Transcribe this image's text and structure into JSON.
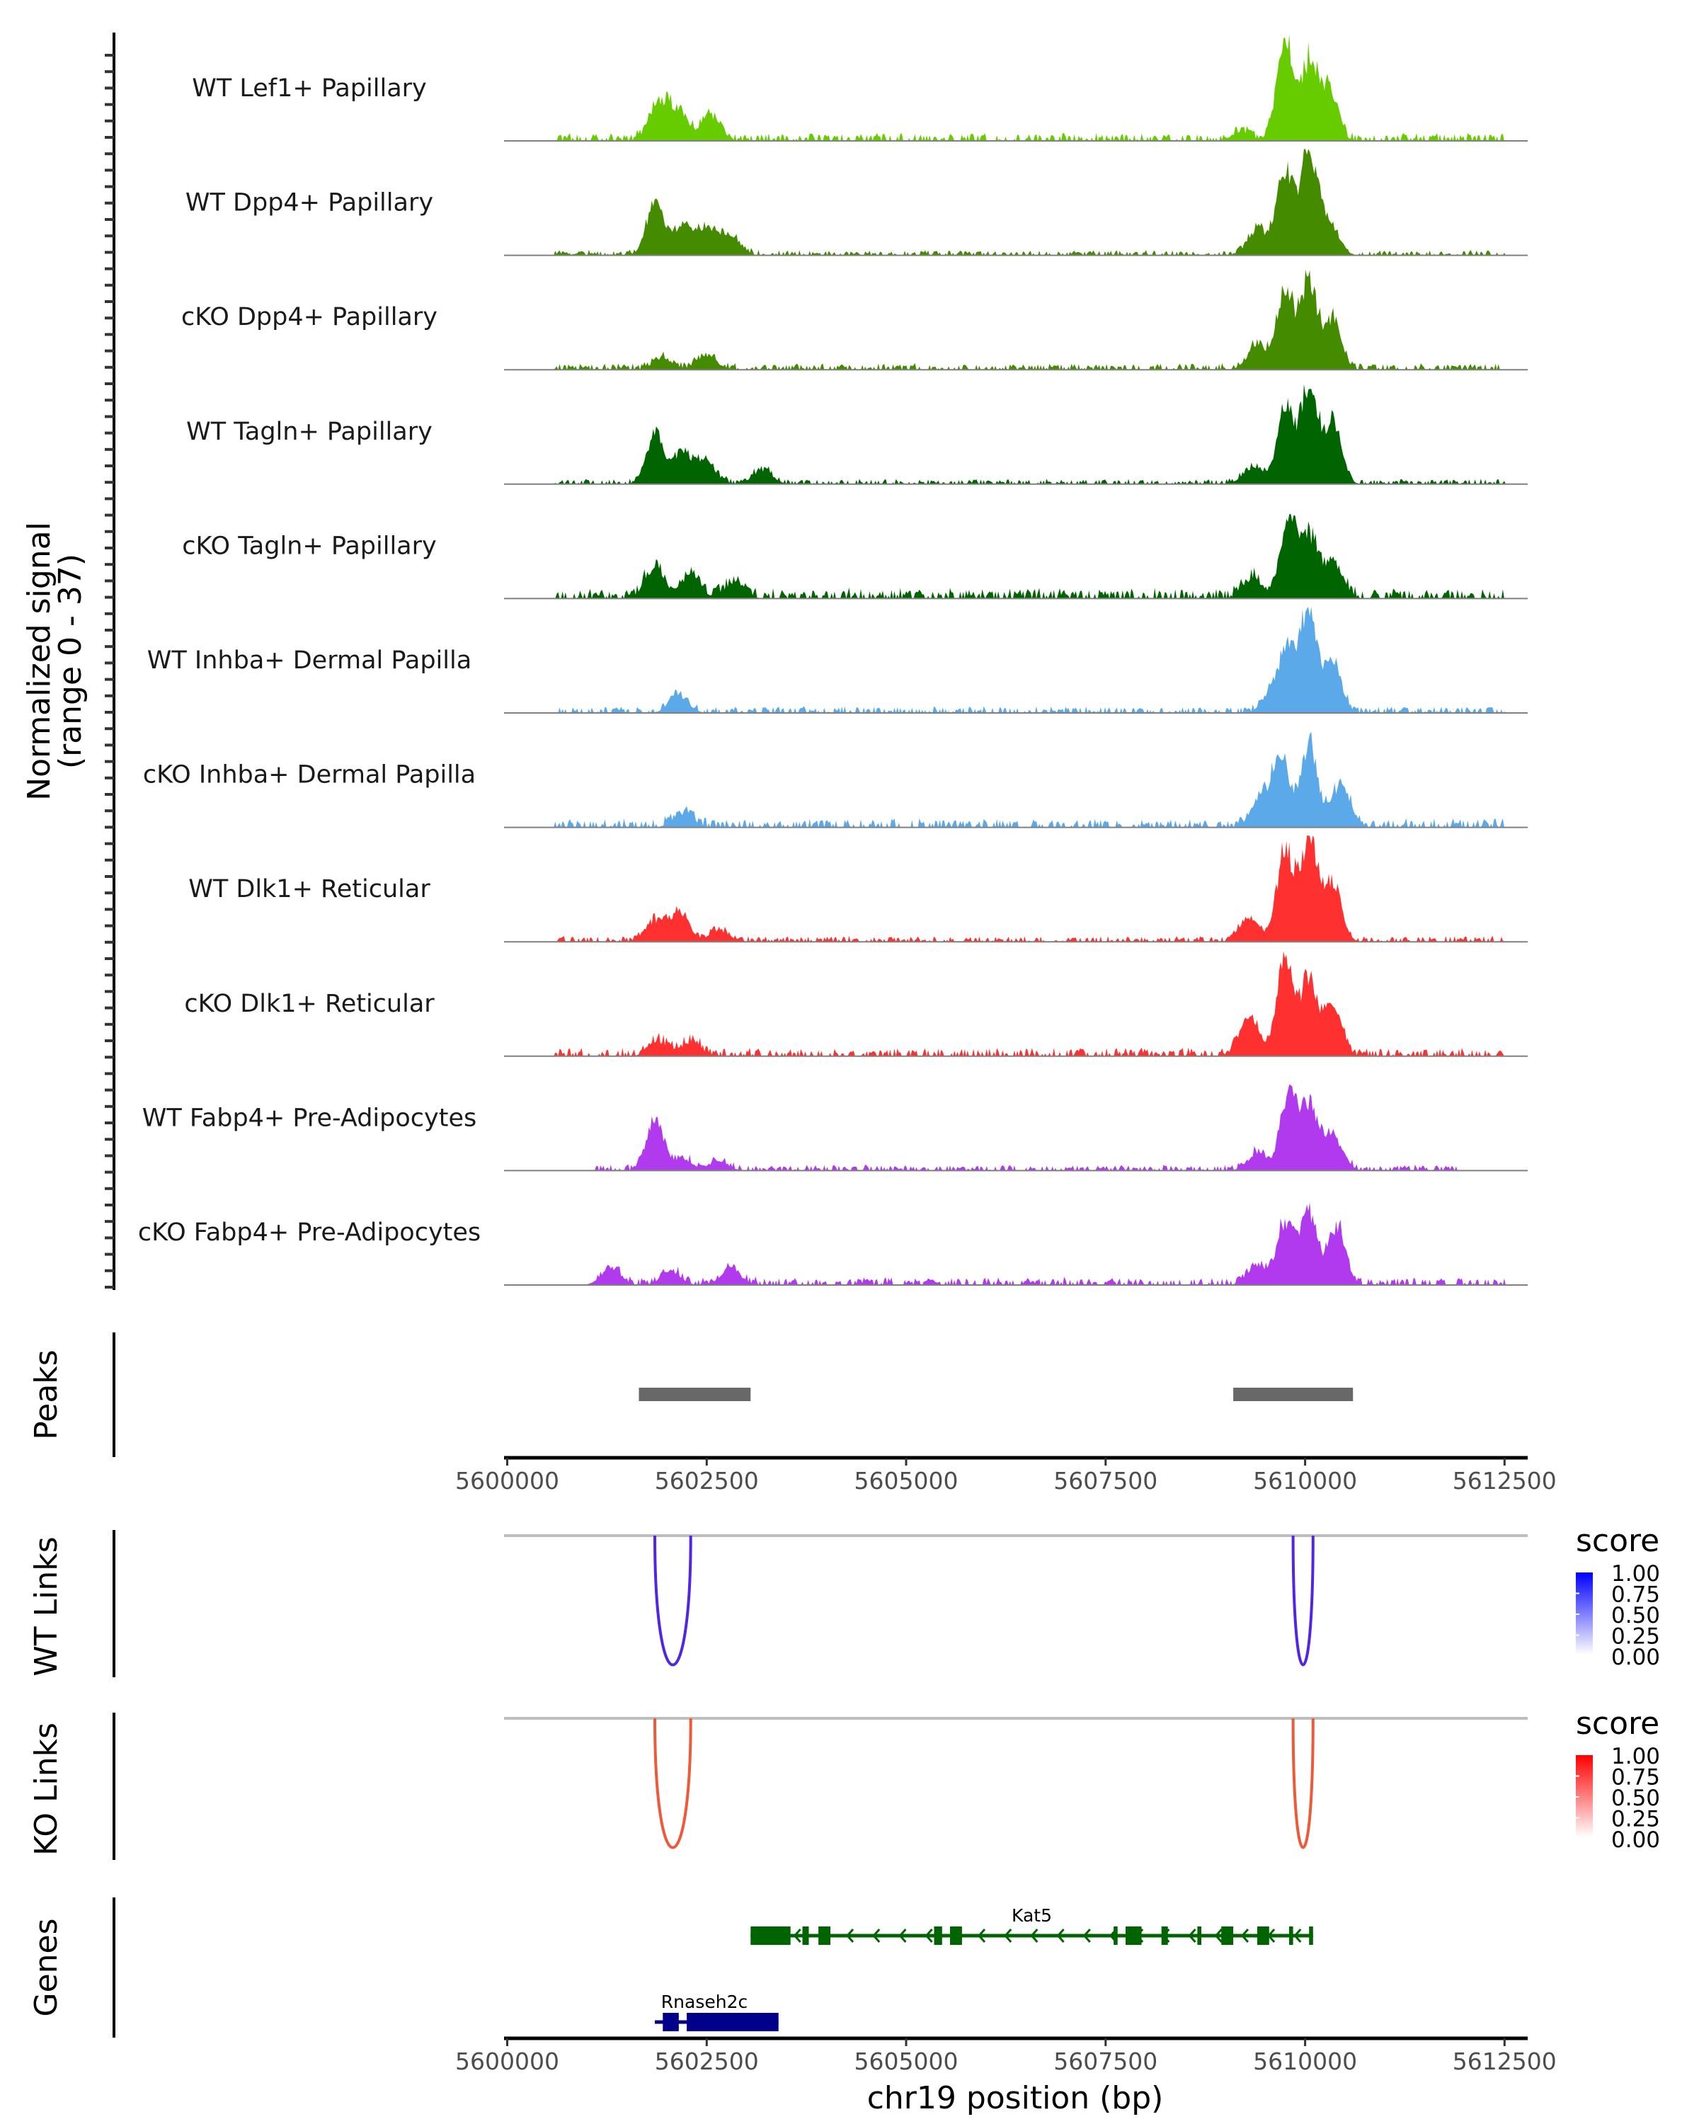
{
  "chart_data": {
    "type": "area",
    "title": "",
    "region": {
      "chrom": "chr19",
      "start": 5599960,
      "end": 5612790
    },
    "coverage": {
      "ylabel": "Normalized signal",
      "ylabel_sub": "(range 0 - 37)",
      "ylim": [
        0,
        37
      ],
      "tracks": [
        {
          "name": "WT Lef1+ Papillary",
          "color": "#66cc00",
          "peaks": [
            [
              5601900,
              12
            ],
            [
              5602150,
              10
            ],
            [
              5602550,
              8
            ],
            [
              5609750,
              33
            ],
            [
              5610050,
              26
            ],
            [
              5610300,
              18
            ],
            [
              5609200,
              3
            ]
          ],
          "background": 1.2,
          "noise_start": 5600600,
          "noise_end": 5612500
        },
        {
          "name": "WT Dpp4+ Papillary",
          "color": "#458b00",
          "peaks": [
            [
              5601850,
              18
            ],
            [
              5602200,
              10
            ],
            [
              5602500,
              9
            ],
            [
              5602800,
              7
            ],
            [
              5609400,
              9
            ],
            [
              5609750,
              29
            ],
            [
              5610050,
              36
            ],
            [
              5610300,
              10
            ]
          ],
          "background": 0.8,
          "noise_start": 5600600,
          "noise_end": 5612500
        },
        {
          "name": "cKO Dpp4+ Papillary",
          "color": "#458b00",
          "peaks": [
            [
              5601950,
              4
            ],
            [
              5602500,
              5
            ],
            [
              5609400,
              8
            ],
            [
              5609750,
              26
            ],
            [
              5610050,
              30
            ],
            [
              5610350,
              17
            ]
          ],
          "background": 1.0,
          "noise_start": 5600600,
          "noise_end": 5612500
        },
        {
          "name": "WT Tagln+ Papillary",
          "color": "#006400",
          "peaks": [
            [
              5601850,
              17
            ],
            [
              5602200,
              11
            ],
            [
              5602500,
              7
            ],
            [
              5603200,
              5
            ],
            [
              5609350,
              6
            ],
            [
              5609750,
              26
            ],
            [
              5610050,
              33
            ],
            [
              5610350,
              22
            ]
          ],
          "background": 0.8,
          "noise_start": 5600600,
          "noise_end": 5612500
        },
        {
          "name": "cKO Tagln+ Papillary",
          "color": "#006400",
          "peaks": [
            [
              5601850,
              11
            ],
            [
              5602300,
              8
            ],
            [
              5602850,
              6
            ],
            [
              5609350,
              7
            ],
            [
              5609800,
              26
            ],
            [
              5610050,
              21
            ],
            [
              5610350,
              13
            ]
          ],
          "background": 1.6,
          "noise_start": 5600600,
          "noise_end": 5612500
        },
        {
          "name": "WT Inhba+ Dermal Papilla",
          "color": "#5ca9e9",
          "peaks": [
            [
              5602150,
              6
            ],
            [
              5609600,
              8
            ],
            [
              5609800,
              20
            ],
            [
              5610050,
              33
            ],
            [
              5610350,
              17
            ]
          ],
          "background": 1.0,
          "noise_start": 5600600,
          "noise_end": 5612500
        },
        {
          "name": "cKO Inhba+ Dermal Papilla",
          "color": "#5ca9e9",
          "peaks": [
            [
              5602200,
              5
            ],
            [
              5609450,
              10
            ],
            [
              5609700,
              24
            ],
            [
              5610050,
              27
            ],
            [
              5610450,
              15
            ]
          ],
          "background": 1.4,
          "noise_start": 5600600,
          "noise_end": 5612500
        },
        {
          "name": "WT Dlk1+ Reticular",
          "color": "#ff3030",
          "peaks": [
            [
              5601850,
              7
            ],
            [
              5602150,
              10
            ],
            [
              5602650,
              4
            ],
            [
              5609300,
              8
            ],
            [
              5609750,
              31
            ],
            [
              5610050,
              36
            ],
            [
              5610350,
              20
            ]
          ],
          "background": 0.9,
          "noise_start": 5600600,
          "noise_end": 5612500
        },
        {
          "name": "cKO Dlk1+ Reticular",
          "color": "#ff3030",
          "peaks": [
            [
              5601900,
              5
            ],
            [
              5602300,
              5
            ],
            [
              5609300,
              13
            ],
            [
              5609750,
              32
            ],
            [
              5610050,
              26
            ],
            [
              5610350,
              17
            ]
          ],
          "background": 1.3,
          "noise_start": 5600600,
          "noise_end": 5612500
        },
        {
          "name": "WT Fabp4+ Pre-Adipocytes",
          "color": "#b23aee",
          "peaks": [
            [
              5601850,
              17
            ],
            [
              5602200,
              4
            ],
            [
              5602650,
              3
            ],
            [
              5609400,
              6
            ],
            [
              5609800,
              25
            ],
            [
              5610050,
              22
            ],
            [
              5610350,
              12
            ]
          ],
          "background": 0.9,
          "noise_start": 5601100,
          "noise_end": 5611900
        },
        {
          "name": "cKO Fabp4+ Pre-Adipocytes",
          "color": "#b23aee",
          "peaks": [
            [
              5601300,
              6
            ],
            [
              5602050,
              5
            ],
            [
              5602800,
              6
            ],
            [
              5609400,
              7
            ],
            [
              5609750,
              22
            ],
            [
              5610050,
              25
            ],
            [
              5610400,
              20
            ]
          ],
          "background": 1.2,
          "noise_start": 5601100,
          "noise_end": 5612500
        }
      ]
    },
    "peaks_track": {
      "label": "Peaks",
      "color": "#686868",
      "regions": [
        [
          5601650,
          5603050
        ],
        [
          5609100,
          5610600
        ]
      ]
    },
    "x_axis": {
      "label": "chr19 position (bp)",
      "ticks": [
        5600000,
        5602500,
        5605000,
        5607500,
        5610000,
        5612500
      ],
      "tick_labels": [
        "5600000",
        "5602500",
        "5605000",
        "5607500",
        "5610000",
        "5612500"
      ]
    },
    "links": [
      {
        "label": "WT Links",
        "color": "#5025e8",
        "arcs": [
          {
            "start": 5601850,
            "end": 5602300,
            "score": 0.85
          },
          {
            "start": 5609850,
            "end": 5610100,
            "score": 0.85
          }
        ],
        "legend": {
          "title": "score",
          "labels": [
            "1.00",
            "0.75",
            "0.50",
            "0.25",
            "0.00"
          ],
          "color_high": "#0000ff",
          "color_low": "#ffffff"
        }
      },
      {
        "label": "KO Links",
        "color": "#f0583a",
        "arcs": [
          {
            "start": 5601850,
            "end": 5602300,
            "score": 0.75
          },
          {
            "start": 5609850,
            "end": 5610100,
            "score": 0.75
          }
        ],
        "legend": {
          "title": "score",
          "labels": [
            "1.00",
            "0.75",
            "0.50",
            "0.25",
            "0.00"
          ],
          "color_high": "#ff0000",
          "color_low": "#ffffff"
        }
      }
    ],
    "genes": {
      "label": "Genes",
      "items": [
        {
          "name": "Kat5",
          "color": "#006400",
          "strand": "-",
          "start": 5603050,
          "end": 5610100,
          "exons": [
            [
              5603050,
              5603550
            ],
            [
              5603700,
              5603780
            ],
            [
              5603900,
              5604050
            ],
            [
              5605350,
              5605450
            ],
            [
              5605550,
              5605700
            ],
            [
              5607600,
              5607650
            ],
            [
              5607750,
              5607950
            ],
            [
              5608200,
              5608280
            ],
            [
              5608650,
              5608700
            ],
            [
              5608950,
              5609100
            ],
            [
              5609400,
              5609550
            ],
            [
              5609800,
              5609850
            ],
            [
              5610050,
              5610100
            ]
          ]
        },
        {
          "name": "Rnaseh2c",
          "color": "#00008b",
          "strand": "-",
          "start": 5601850,
          "end": 5603400,
          "exons": [
            [
              5601950,
              5602150
            ],
            [
              5602250,
              5603400
            ]
          ]
        }
      ]
    }
  }
}
